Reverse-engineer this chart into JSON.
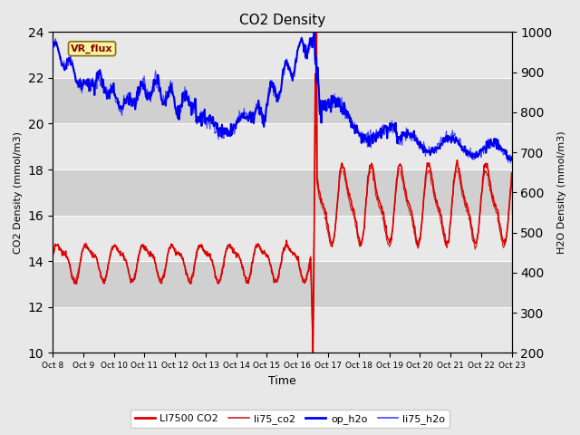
{
  "title": "CO2 Density",
  "xlabel": "Time",
  "ylabel_left": "CO2 Density (mmol/m3)",
  "ylabel_right": "H2O Density (mmol/m3)",
  "ylim_left": [
    10,
    24
  ],
  "ylim_right": [
    200,
    1000
  ],
  "yticks_left": [
    10,
    12,
    14,
    16,
    18,
    20,
    22,
    24
  ],
  "yticks_right": [
    200,
    300,
    400,
    500,
    600,
    700,
    800,
    900,
    1000
  ],
  "xtick_labels": [
    "Oct 8",
    "Oct 9",
    "Oct 10",
    "Oct 11",
    "Oct 12",
    "Oct 13",
    "Oct 14",
    "Oct 15",
    "Oct 16",
    "Oct 17",
    "Oct 18",
    "Oct 19",
    "Oct 20",
    "Oct 21",
    "Oct 22",
    "Oct 23"
  ],
  "n_days": 16,
  "colors": {
    "LI7500_CO2": "#dd0000",
    "li75_co2": "#cc2222",
    "op_h2o": "#0000ee",
    "li75_h2o": "#4444ff"
  },
  "lw_thick": 1.2,
  "lw_thin": 0.8,
  "annotation_text": "VR_flux",
  "bg_color": "#e8e8e8",
  "band_light": "#e8e8e8",
  "band_dark": "#d0d0d0",
  "legend_labels": [
    "LI7500 CO2",
    "li75_co2",
    "op_h2o",
    "li75_h2o"
  ]
}
